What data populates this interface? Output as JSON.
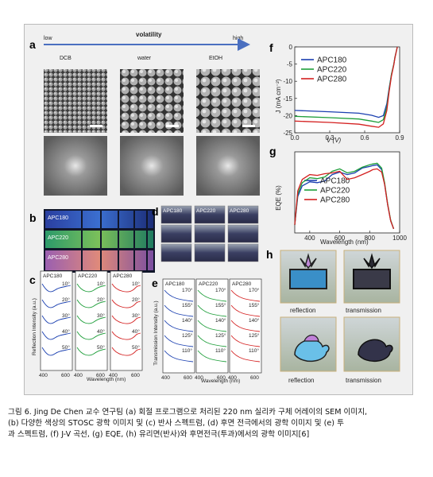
{
  "panels": {
    "a": {
      "label": "a",
      "volatility_title": "volatility",
      "low": "low",
      "high": "high",
      "solvents": [
        "DCB",
        "water",
        "EtOH"
      ]
    },
    "b": {
      "label": "b",
      "samples": [
        "APC180",
        "APC220",
        "APC280"
      ]
    },
    "c": {
      "label": "c",
      "titles": [
        "APC180",
        "APC220",
        "APC280"
      ],
      "angles": [
        "10°",
        "20°",
        "30°",
        "40°",
        "50°"
      ],
      "ylabel": "Reflection Intensity (a.u.)",
      "xlabel": "Wavelength (nm)",
      "xticks": [
        "400",
        "600"
      ],
      "colors": [
        "#1a3fb0",
        "#1e9e3a",
        "#d42020"
      ]
    },
    "d": {
      "label": "d",
      "samples": [
        "APC180",
        "APC220",
        "APC280"
      ]
    },
    "e": {
      "label": "e",
      "titles": [
        "APC180",
        "APC220",
        "APC280"
      ],
      "angles": [
        "170°",
        "155°",
        "140°",
        "125°",
        "110°"
      ],
      "ylabel": "Transmission Intensity (a.u.)",
      "xlabel": "Wavelength (nm)",
      "xticks": [
        "400",
        "600"
      ]
    },
    "f": {
      "label": "f",
      "ylabel": "J (mA cm⁻²)",
      "xlabel": "V (V)"
    },
    "g": {
      "label": "g",
      "ylabel": "EQE (%)",
      "xlabel": "Wavelength (nm)"
    },
    "h": {
      "label": "h",
      "reflection": "reflection",
      "transmission": "transmission"
    }
  },
  "chart_data": [
    {
      "type": "line",
      "xlabel": "V (V)",
      "ylabel": "J (mA cm⁻²)",
      "xlim": [
        0.0,
        0.9
      ],
      "ylim": [
        -25,
        0
      ],
      "xticks": [
        "0.0",
        "0.3",
        "0.6",
        "0.9"
      ],
      "yticks": [
        "0",
        "-5",
        "-10",
        "-15",
        "-20",
        "-25"
      ],
      "series": [
        {
          "name": "APC180",
          "color": "#1a3fb0",
          "x": [
            0,
            0.3,
            0.55,
            0.66,
            0.72,
            0.76,
            0.79,
            0.81,
            0.83,
            0.85,
            0.86,
            0.87,
            0.88
          ],
          "y": [
            -18.5,
            -18.9,
            -19.3,
            -19.9,
            -20.5,
            -20.0,
            -16.5,
            -12,
            -8,
            -5,
            -3,
            -1.5,
            0
          ]
        },
        {
          "name": "APC220",
          "color": "#1e9e3a",
          "x": [
            0,
            0.3,
            0.55,
            0.66,
            0.72,
            0.76,
            0.79,
            0.81,
            0.83,
            0.85,
            0.86,
            0.87,
            0.88
          ],
          "y": [
            -20.2,
            -20.6,
            -21.0,
            -21.6,
            -22.0,
            -21.2,
            -17.5,
            -12.5,
            -8,
            -5,
            -3,
            -1.5,
            0
          ]
        },
        {
          "name": "APC280",
          "color": "#d42020",
          "x": [
            0,
            0.3,
            0.55,
            0.66,
            0.72,
            0.76,
            0.79,
            0.81,
            0.83,
            0.85,
            0.86,
            0.87,
            0.88
          ],
          "y": [
            -21.6,
            -22.0,
            -22.5,
            -23.1,
            -23.4,
            -22.4,
            -18.5,
            -13,
            -8.5,
            -5.2,
            -3.2,
            -1.6,
            0
          ]
        }
      ]
    },
    {
      "type": "line",
      "xlabel": "Wavelength (nm)",
      "ylabel": "EQE (%)",
      "xlim": [
        300,
        1000
      ],
      "xticks": [
        "400",
        "600",
        "800",
        "1000"
      ],
      "series": [
        {
          "name": "APC180",
          "color": "#1a3fb0",
          "x": [
            300,
            320,
            350,
            400,
            450,
            500,
            550,
            600,
            650,
            700,
            750,
            800,
            820,
            850,
            880,
            900,
            920,
            940,
            960
          ],
          "y": [
            10,
            45,
            58,
            63,
            62,
            64,
            72,
            75,
            72,
            74,
            80,
            82,
            83,
            84,
            78,
            60,
            35,
            15,
            5
          ]
        },
        {
          "name": "APC220",
          "color": "#1e9e3a",
          "x": [
            300,
            320,
            350,
            400,
            450,
            500,
            550,
            600,
            650,
            700,
            750,
            800,
            820,
            850,
            880,
            900,
            920,
            940,
            960
          ],
          "y": [
            10,
            48,
            62,
            68,
            67,
            69,
            76,
            79,
            74,
            76,
            81,
            84,
            85,
            86,
            80,
            62,
            36,
            16,
            5
          ]
        },
        {
          "name": "APC280",
          "color": "#d42020",
          "x": [
            300,
            320,
            350,
            400,
            450,
            500,
            550,
            600,
            650,
            700,
            750,
            800,
            820,
            850,
            880,
            900,
            920,
            940,
            960
          ],
          "y": [
            10,
            52,
            66,
            72,
            71,
            73,
            74,
            76,
            66,
            68,
            72,
            76,
            78,
            79,
            75,
            60,
            35,
            15,
            5
          ]
        }
      ]
    }
  ],
  "caption": {
    "line1": "그림 6. Jing De Chen 교수 연구팀 (a) 회절 프로그램으로 처리된 220 nm 실리카 구체 어레이의 SEM 이미지,",
    "line2": "(b) 다양한 색상의 STOSC 광학 이미지 및 (c) 반사 스펙트럼, (d) 후면 전극에서의 광학 이미지 및 (e) 투",
    "line3": "과 스펙트럼, (f) J-V 곡선, (g) EQE, (h) 유리면(반사)와 후면전극(투과)에서의 광학 이미지[6]"
  }
}
